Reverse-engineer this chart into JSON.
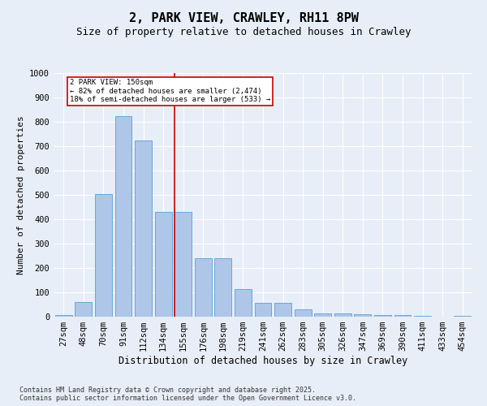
{
  "title": "2, PARK VIEW, CRAWLEY, RH11 8PW",
  "subtitle": "Size of property relative to detached houses in Crawley",
  "xlabel": "Distribution of detached houses by size in Crawley",
  "ylabel": "Number of detached properties",
  "footer_line1": "Contains HM Land Registry data © Crown copyright and database right 2025.",
  "footer_line2": "Contains public sector information licensed under the Open Government Licence v3.0.",
  "categories": [
    "27sqm",
    "48sqm",
    "70sqm",
    "91sqm",
    "112sqm",
    "134sqm",
    "155sqm",
    "176sqm",
    "198sqm",
    "219sqm",
    "241sqm",
    "262sqm",
    "283sqm",
    "305sqm",
    "326sqm",
    "347sqm",
    "369sqm",
    "390sqm",
    "411sqm",
    "433sqm",
    "454sqm"
  ],
  "values": [
    8,
    60,
    505,
    825,
    725,
    430,
    430,
    240,
    240,
    115,
    57,
    57,
    30,
    15,
    15,
    10,
    8,
    8,
    5,
    0,
    5
  ],
  "bar_color": "#aec6e8",
  "bar_edge_color": "#5a9fd4",
  "property_line_color": "#cc0000",
  "annotation_box_text": "2 PARK VIEW: 150sqm\n← 82% of detached houses are smaller (2,474)\n18% of semi-detached houses are larger (533) →",
  "ylim": [
    0,
    1000
  ],
  "yticks": [
    0,
    100,
    200,
    300,
    400,
    500,
    600,
    700,
    800,
    900,
    1000
  ],
  "background_color": "#e8eef7",
  "plot_bg_color": "#e8eef7",
  "grid_color": "#ffffff",
  "title_fontsize": 11,
  "subtitle_fontsize": 9,
  "xlabel_fontsize": 8.5,
  "ylabel_fontsize": 8,
  "tick_fontsize": 7.5,
  "footer_fontsize": 6
}
